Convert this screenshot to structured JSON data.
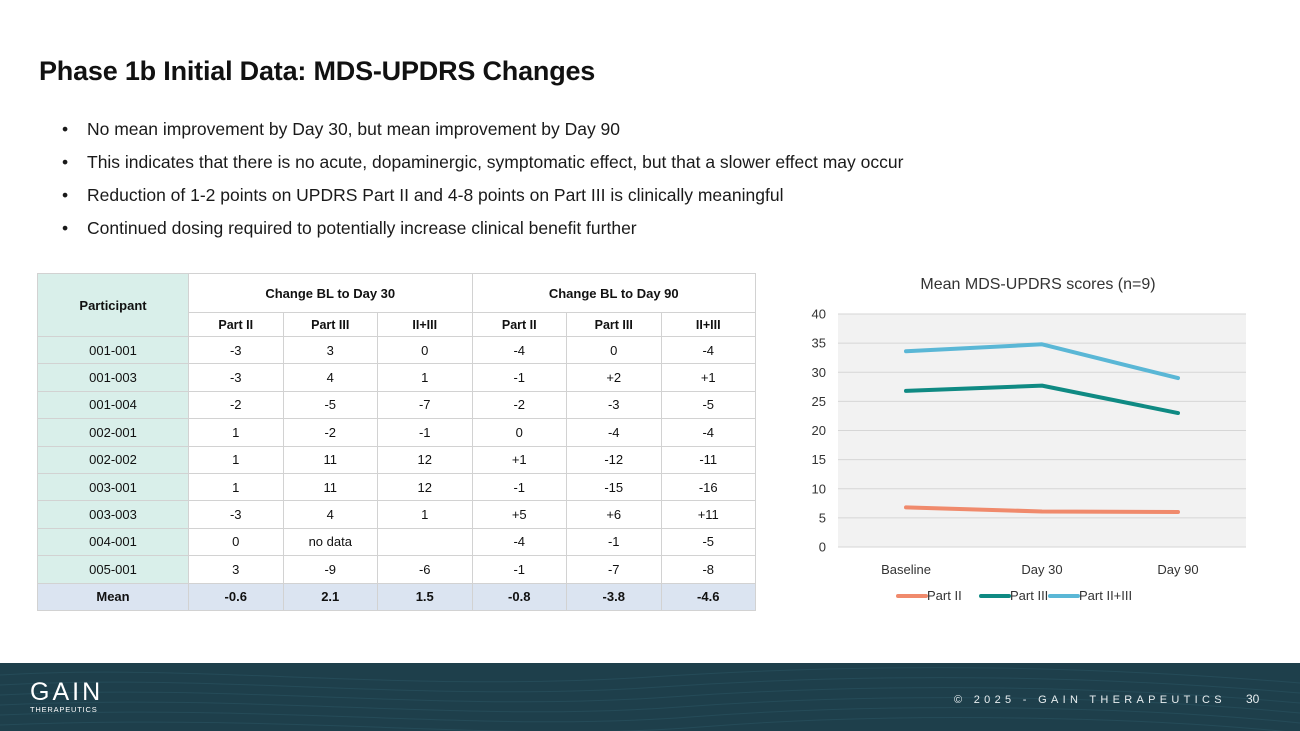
{
  "slide": {
    "title": "Phase 1b Initial Data: MDS-UPDRS Changes",
    "bullets": [
      "No mean improvement by Day 30, but mean improvement by Day 90",
      "This indicates that there is no acute, dopaminergic, symptomatic effect, but that a slower effect may occur",
      "Reduction of 1-2 points on UPDRS Part II and 4-8 points on Part III is clinically meaningful",
      "Continued dosing required to potentially increase clinical benefit further"
    ],
    "bullet_glyph": "•"
  },
  "table": {
    "participant_header": "Participant",
    "group_headers": [
      "Change BL to Day 30",
      "Change BL to Day 90"
    ],
    "sub_headers": [
      "Part II",
      "Part III",
      "II+III",
      "Part II",
      "Part III",
      "II+III"
    ],
    "rows": [
      {
        "id": "001-001",
        "cells": [
          "-3",
          "3",
          "0",
          "-4",
          "0",
          "-4"
        ]
      },
      {
        "id": "001-003",
        "cells": [
          "-3",
          "4",
          "1",
          "-1",
          "+2",
          "+1"
        ]
      },
      {
        "id": "001-004",
        "cells": [
          "-2",
          "-5",
          "-7",
          "-2",
          "-3",
          "-5"
        ]
      },
      {
        "id": "002-001",
        "cells": [
          "1",
          "-2",
          "-1",
          "0",
          "-4",
          "-4"
        ]
      },
      {
        "id": "002-002",
        "cells": [
          "1",
          "11",
          "12",
          "+1",
          "-12",
          "-11"
        ]
      },
      {
        "id": "003-001",
        "cells": [
          "1",
          "11",
          "12",
          "-1",
          "-15",
          "-16"
        ]
      },
      {
        "id": "003-003",
        "cells": [
          "-3",
          "4",
          "1",
          "+5",
          "+6",
          "+11"
        ]
      },
      {
        "id": "004-001",
        "cells": [
          "0",
          "no data",
          "",
          "-4",
          "-1",
          "-5"
        ]
      },
      {
        "id": "005-001",
        "cells": [
          "3",
          "-9",
          "-6",
          "-1",
          "-7",
          "-8"
        ]
      }
    ],
    "mean_row": {
      "label": "Mean",
      "cells": [
        "-0.6",
        "2.1",
        "1.5",
        "-0.8",
        "-3.8",
        "-4.6"
      ]
    }
  },
  "chart_data": {
    "type": "line",
    "title": "Mean MDS-UPDRS scores (n=9)",
    "categories": [
      "Baseline",
      "Day 30",
      "Day 90"
    ],
    "series": [
      {
        "name": "Part II",
        "values": [
          6.8,
          6.1,
          6.0
        ],
        "color": "#f08a6c"
      },
      {
        "name": "Part III",
        "values": [
          26.8,
          27.7,
          23.0
        ],
        "color": "#0f8a83"
      },
      {
        "name": "Part II+III",
        "values": [
          33.6,
          34.8,
          29.0
        ],
        "color": "#5ab7d6"
      }
    ],
    "ylim": [
      0,
      40
    ],
    "yticks": [
      0,
      5,
      10,
      15,
      20,
      25,
      30,
      35,
      40
    ],
    "xlabel": "",
    "ylabel": "",
    "legend": "bottom",
    "grid": true
  },
  "footer": {
    "logo_main": "GAIN",
    "logo_sub": "THERAPEUTICS",
    "copyright": "© 2025 - GAIN THERAPEUTICS",
    "page_number": "30",
    "colors": {
      "background": "#1e3f4b",
      "text": "#ffffff"
    }
  }
}
